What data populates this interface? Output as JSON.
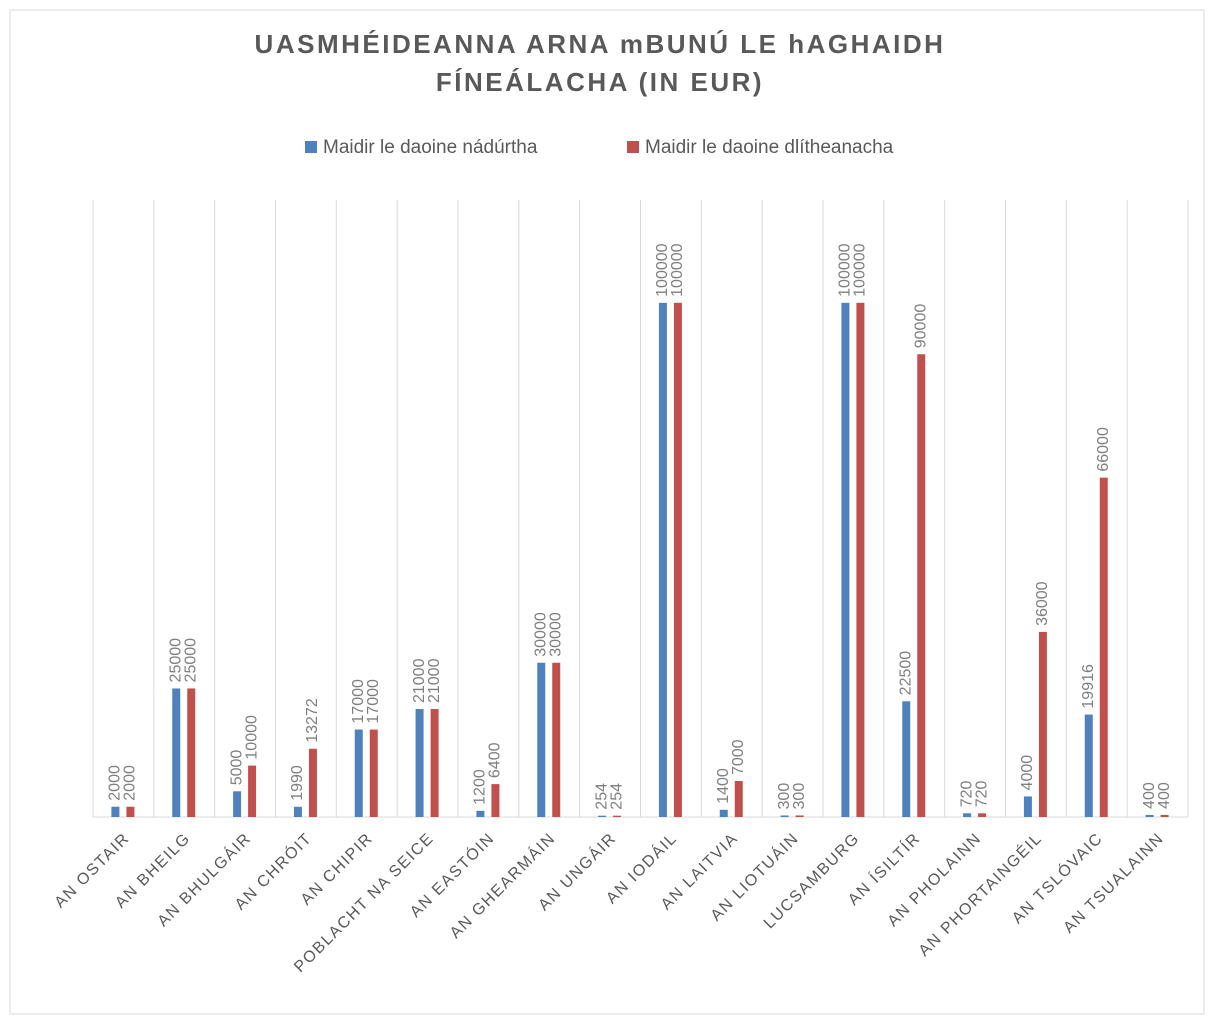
{
  "chart_data": {
    "type": "bar",
    "title": [
      "UASMHÉIDEANNA ARNA mBUNÚ LE hAGHAIDH",
      "FÍNEÁLACHA (IN EUR)"
    ],
    "categories": [
      "AN OSTAIR",
      "AN BHEILG",
      "AN BHULGÁIR",
      "AN CHRÓIT",
      "AN CHIPIR",
      "POBLACHT NA SEICE",
      "AN EASTÓIN",
      "AN GHEARMÁIN",
      "AN UNGÁIR",
      "AN IODÁIL",
      "AN LAITVIA",
      "AN LIOTUÁIN",
      "LUCSAMBURG",
      "AN ÍSILTÍR",
      "AN PHOLAINN",
      "AN PHORTAINGÉIL",
      "AN TSLÓVAIC",
      "AN TSUALAINN"
    ],
    "series": [
      {
        "name": "Maidir le daoine nádúrtha",
        "color": "#4f81bd",
        "values": [
          2000,
          25000,
          5000,
          1990,
          17000,
          21000,
          1200,
          30000,
          254,
          100000,
          1400,
          300,
          100000,
          22500,
          720,
          4000,
          19916,
          400
        ]
      },
      {
        "name": "Maidir le daoine dlítheanacha",
        "color": "#c0504d",
        "values": [
          2000,
          25000,
          10000,
          13272,
          17000,
          21000,
          6400,
          30000,
          254,
          100000,
          7000,
          300,
          100000,
          90000,
          720,
          36000,
          66000,
          400
        ]
      }
    ],
    "ylim": [
      0,
      120000
    ],
    "legend": "top"
  }
}
